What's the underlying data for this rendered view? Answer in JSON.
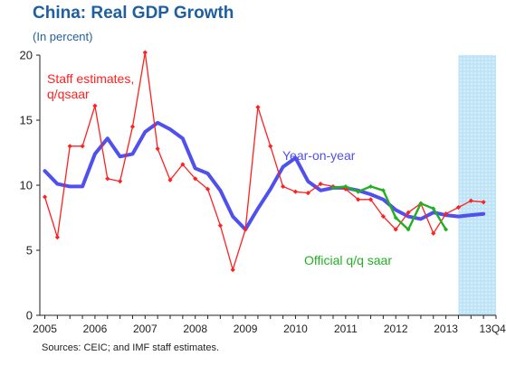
{
  "title": "China: Real GDP Growth",
  "subtitle": "(In percent)",
  "source": "Sources: CEIC; and IMF staff estimates.",
  "chart_data": {
    "type": "line",
    "title": "China: Real GDP Growth",
    "subtitle": "(In percent)",
    "ylim": [
      0,
      20
    ],
    "yticks": [
      0,
      5,
      10,
      15,
      20
    ],
    "xlim": [
      2004.9,
      2014.0
    ],
    "xtick_labels": [
      "2005",
      "2006",
      "2007",
      "2008",
      "2009",
      "2010",
      "2011",
      "2012",
      "2013",
      "13Q4"
    ],
    "xtick_positions": [
      2005,
      2006,
      2007,
      2008,
      2009,
      2010,
      2011,
      2012,
      2013,
      2013.75
    ],
    "shaded_region": {
      "from": 2013.25,
      "to": 2014.0
    },
    "colors": {
      "staff": "#ff2020",
      "yoy": "#5050ee",
      "official": "#22b022",
      "shade": "#bfe3f7"
    },
    "series": [
      {
        "name": "Staff estimates, q/qsaar",
        "label_lines": [
          "Staff estimates,",
          "q/qsaar"
        ],
        "x": [
          2005.0,
          2005.25,
          2005.5,
          2005.75,
          2006.0,
          2006.25,
          2006.5,
          2006.75,
          2007.0,
          2007.25,
          2007.5,
          2007.75,
          2008.0,
          2008.25,
          2008.5,
          2008.75,
          2009.0,
          2009.25,
          2009.5,
          2009.75,
          2010.0,
          2010.25,
          2010.5,
          2010.75,
          2011.0,
          2011.25,
          2011.5,
          2011.75,
          2012.0,
          2012.25,
          2012.5,
          2012.75,
          2013.0,
          2013.25,
          2013.5,
          2013.75
        ],
        "values": [
          9.1,
          6.0,
          13.0,
          13.0,
          16.1,
          10.5,
          10.3,
          14.5,
          20.2,
          12.8,
          10.4,
          11.6,
          10.5,
          9.7,
          6.9,
          3.5,
          6.6,
          16.0,
          13.0,
          9.9,
          9.5,
          9.4,
          10.1,
          9.9,
          9.7,
          8.9,
          8.9,
          7.6,
          6.6,
          7.9,
          8.6,
          6.3,
          7.8,
          8.3,
          8.8,
          8.7
        ]
      },
      {
        "name": "Year-on-year",
        "label_lines": [
          "Year-on-year"
        ],
        "x": [
          2005.0,
          2005.25,
          2005.5,
          2005.75,
          2006.0,
          2006.25,
          2006.5,
          2006.75,
          2007.0,
          2007.25,
          2007.5,
          2007.75,
          2008.0,
          2008.25,
          2008.5,
          2008.75,
          2009.0,
          2009.25,
          2009.5,
          2009.75,
          2010.0,
          2010.25,
          2010.5,
          2010.75,
          2011.0,
          2011.25,
          2011.5,
          2011.75,
          2012.0,
          2012.25,
          2012.5,
          2012.75,
          2013.0,
          2013.25,
          2013.5,
          2013.75
        ],
        "values": [
          11.1,
          10.1,
          9.9,
          9.9,
          12.4,
          13.6,
          12.2,
          12.4,
          14.1,
          14.8,
          14.3,
          13.6,
          11.3,
          10.9,
          9.6,
          7.6,
          6.6,
          8.2,
          9.7,
          11.4,
          12.1,
          10.3,
          9.6,
          9.8,
          9.8,
          9.6,
          9.3,
          8.9,
          8.1,
          7.6,
          7.4,
          7.9,
          7.7,
          7.6,
          7.7,
          7.8
        ]
      },
      {
        "name": "Official q/q saar",
        "label_lines": [
          "Official q/q saar"
        ],
        "x": [
          2010.75,
          2011.0,
          2011.25,
          2011.5,
          2011.75,
          2012.0,
          2012.25,
          2012.5,
          2012.75,
          2013.0
        ],
        "values": [
          9.8,
          9.9,
          9.5,
          9.9,
          9.6,
          7.5,
          6.6,
          8.6,
          8.2,
          6.6
        ]
      }
    ]
  }
}
